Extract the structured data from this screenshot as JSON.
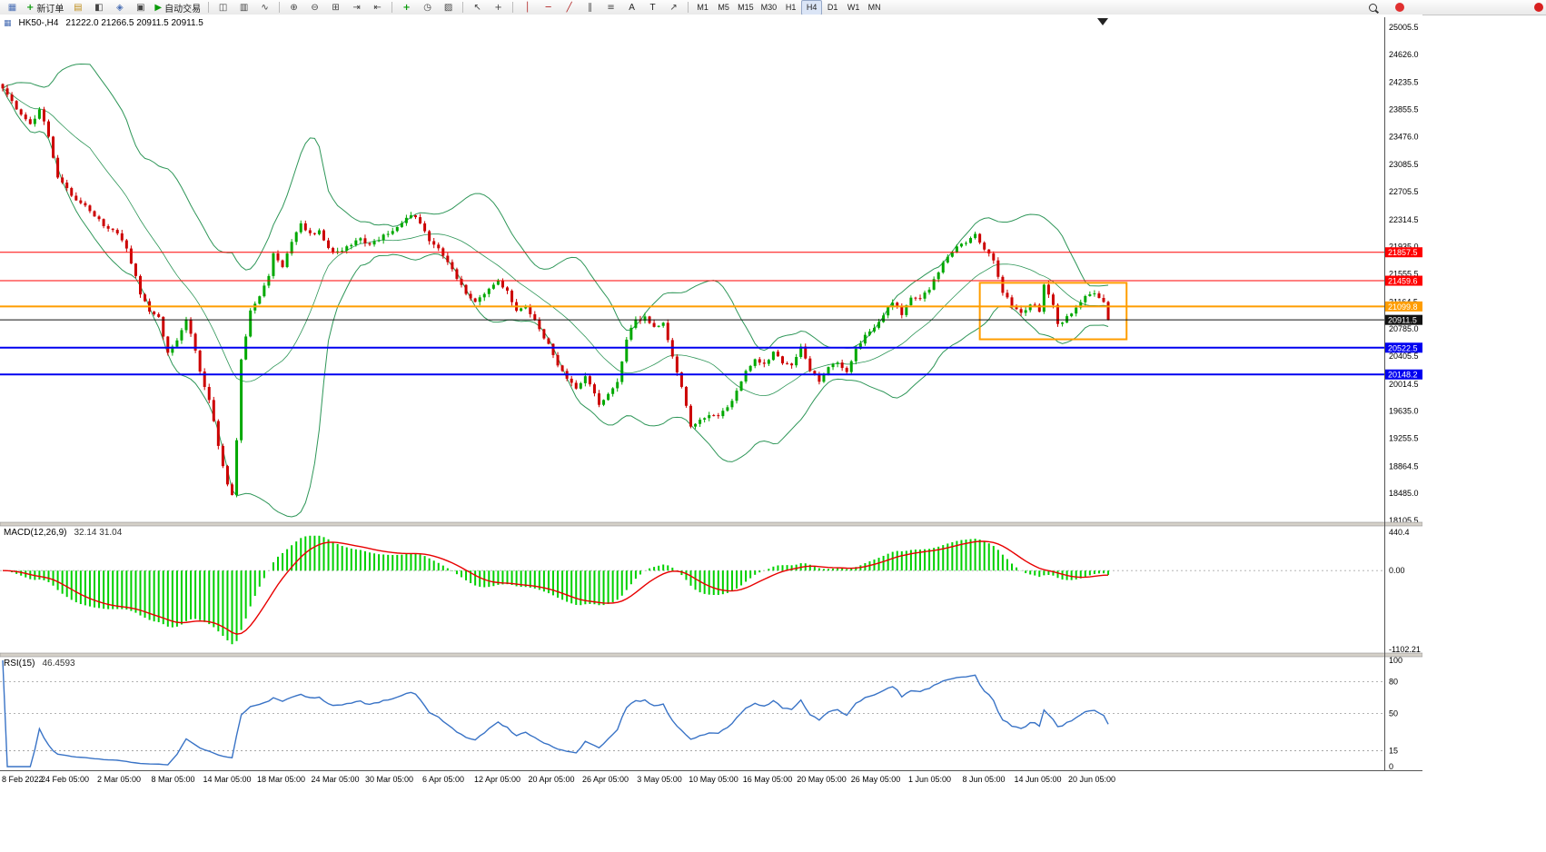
{
  "window": {
    "symbol_title": "HK50-,H4",
    "ohlc": "21222.0 21266.5 20911.5 20911.5"
  },
  "toolbar": {
    "items": [
      {
        "t": "icon",
        "name": "chart-window"
      },
      {
        "t": "btn",
        "name": "new-order-button",
        "icon": "new-order",
        "label": "新订单"
      },
      {
        "t": "icon",
        "name": "market-watch"
      },
      {
        "t": "icon",
        "name": "data-window"
      },
      {
        "t": "icon",
        "name": "navigator"
      },
      {
        "t": "icon",
        "name": "terminal"
      },
      {
        "t": "btn",
        "name": "auto-trading-button",
        "icon": "play",
        "label": "自动交易"
      },
      {
        "t": "sep"
      },
      {
        "t": "icon",
        "name": "bar-chart"
      },
      {
        "t": "icon",
        "name": "candlestick-chart"
      },
      {
        "t": "icon",
        "name": "line-chart"
      },
      {
        "t": "sep"
      },
      {
        "t": "icon",
        "name": "zoom-in"
      },
      {
        "t": "icon",
        "name": "zoom-out"
      },
      {
        "t": "icon",
        "name": "tile-windows"
      },
      {
        "t": "icon",
        "name": "auto-scroll"
      },
      {
        "t": "icon",
        "name": "chart-shift"
      },
      {
        "t": "sep"
      },
      {
        "t": "icon",
        "name": "indicators"
      },
      {
        "t": "icon",
        "name": "periods"
      },
      {
        "t": "icon",
        "name": "templates"
      },
      {
        "t": "sep"
      },
      {
        "t": "icon",
        "name": "cursor"
      },
      {
        "t": "icon",
        "name": "crosshair"
      },
      {
        "t": "sep"
      },
      {
        "t": "icon",
        "name": "vertical-line"
      },
      {
        "t": "icon",
        "name": "horizontal-line"
      },
      {
        "t": "icon",
        "name": "trendline"
      },
      {
        "t": "icon",
        "name": "equidistant-channel"
      },
      {
        "t": "icon",
        "name": "fibonacci"
      },
      {
        "t": "btn",
        "name": "text-tool-button",
        "label": "A"
      },
      {
        "t": "btn",
        "name": "label-tool-button",
        "label": "T"
      },
      {
        "t": "icon",
        "name": "arrows"
      },
      {
        "t": "sep"
      },
      {
        "t": "tf",
        "label": "M1"
      },
      {
        "t": "tf",
        "label": "M5"
      },
      {
        "t": "tf",
        "label": "M15"
      },
      {
        "t": "tf",
        "label": "M30"
      },
      {
        "t": "tf",
        "label": "H1"
      },
      {
        "t": "tf",
        "label": "H4",
        "active": true
      },
      {
        "t": "tf",
        "label": "D1"
      },
      {
        "t": "tf",
        "label": "W1"
      },
      {
        "t": "tf",
        "label": "MN"
      }
    ],
    "right_items": [
      {
        "t": "icon",
        "name": "search"
      },
      {
        "t": "icon",
        "name": "notifications"
      }
    ]
  },
  "colors": {
    "candle_up": "#00a800",
    "candle_down": "#cc0000",
    "bollinger": "#2e9658",
    "macd_histogram": "#00d000",
    "macd_signal": "#e80000",
    "rsi": "#3973c6",
    "hline_red": "#ff0000",
    "hline_orange": "#ff9d00",
    "hline_blue": "#0000f0",
    "current_price": "#111111"
  },
  "chart_data": {
    "type": "candlestick",
    "symbol": "HK50-",
    "timeframe": "H4",
    "main": {
      "price_max": 25005.5,
      "price_min": 18105.5,
      "bars_total": 242,
      "axis_labels": [
        "25005.5",
        "24626.0",
        "24235.5",
        "23855.5",
        "23476.0",
        "23085.5",
        "22705.5",
        "22314.5",
        "21935.0",
        "21555.5",
        "21164.5",
        "20785.0",
        "20405.5",
        "20014.5",
        "19635.0",
        "19255.5",
        "18864.5",
        "18485.0",
        "18105.5"
      ],
      "bollinger": {
        "period": 20,
        "deviation": 2
      },
      "hlines": [
        {
          "price": 21857.5,
          "label": "21857.5",
          "color": "#ff0000",
          "width": 1
        },
        {
          "price": 21459.6,
          "label": "21459.6",
          "color": "#ff0000",
          "width": 1
        },
        {
          "price": 21099.8,
          "label": "21099.8",
          "color": "#ff9d00",
          "width": 2
        },
        {
          "price": 20911.5,
          "label": "20911.5",
          "color": "#111111",
          "width": 1
        },
        {
          "price": 20522.5,
          "label": "20522.5",
          "color": "#0000f0",
          "width": 2
        },
        {
          "price": 20148.2,
          "label": "20148.2",
          "color": "#0000f0",
          "width": 2
        }
      ],
      "rectangle": {
        "bar_start": 213,
        "bar_end": 245,
        "price_top": 21430,
        "price_bottom": 20640,
        "color": "#ff9d00"
      },
      "close_keypoints": [
        [
          0,
          24150
        ],
        [
          2,
          23950
        ],
        [
          4,
          23800
        ],
        [
          6,
          23650
        ],
        [
          8,
          23850
        ],
        [
          10,
          23500
        ],
        [
          12,
          22900
        ],
        [
          14,
          22750
        ],
        [
          16,
          22600
        ],
        [
          18,
          22500
        ],
        [
          20,
          22350
        ],
        [
          22,
          22250
        ],
        [
          24,
          22150
        ],
        [
          26,
          22050
        ],
        [
          27,
          21900
        ],
        [
          29,
          21500
        ],
        [
          30,
          21250
        ],
        [
          32,
          21050
        ],
        [
          34,
          20950
        ],
        [
          36,
          20450
        ],
        [
          38,
          20650
        ],
        [
          40,
          20900
        ],
        [
          42,
          20500
        ],
        [
          43,
          20200
        ],
        [
          45,
          19800
        ],
        [
          47,
          19150
        ],
        [
          49,
          18600
        ],
        [
          50,
          18450
        ],
        [
          51,
          19250
        ],
        [
          52,
          20350
        ],
        [
          54,
          21050
        ],
        [
          56,
          21250
        ],
        [
          58,
          21550
        ],
        [
          59,
          21850
        ],
        [
          61,
          21650
        ],
        [
          63,
          22000
        ],
        [
          65,
          22250
        ],
        [
          67,
          22100
        ],
        [
          69,
          22150
        ],
        [
          71,
          21900
        ],
        [
          73,
          21850
        ],
        [
          75,
          21950
        ],
        [
          78,
          22050
        ],
        [
          80,
          21950
        ],
        [
          83,
          22100
        ],
        [
          86,
          22200
        ],
        [
          89,
          22400
        ],
        [
          91,
          22250
        ],
        [
          93,
          22000
        ],
        [
          95,
          21900
        ],
        [
          97,
          21700
        ],
        [
          99,
          21500
        ],
        [
          101,
          21300
        ],
        [
          103,
          21150
        ],
        [
          105,
          21300
        ],
        [
          108,
          21450
        ],
        [
          110,
          21300
        ],
        [
          112,
          21050
        ],
        [
          114,
          21100
        ],
        [
          116,
          20900
        ],
        [
          119,
          20550
        ],
        [
          121,
          20250
        ],
        [
          123,
          20100
        ],
        [
          125,
          19950
        ],
        [
          127,
          20150
        ],
        [
          129,
          19900
        ],
        [
          130,
          19750
        ],
        [
          132,
          19850
        ],
        [
          134,
          20050
        ],
        [
          136,
          20650
        ],
        [
          138,
          20900
        ],
        [
          140,
          20950
        ],
        [
          142,
          20800
        ],
        [
          144,
          20850
        ],
        [
          146,
          20400
        ],
        [
          148,
          20000
        ],
        [
          150,
          19400
        ],
        [
          152,
          19500
        ],
        [
          154,
          19600
        ],
        [
          156,
          19550
        ],
        [
          158,
          19700
        ],
        [
          160,
          19900
        ],
        [
          162,
          20200
        ],
        [
          164,
          20350
        ],
        [
          166,
          20300
        ],
        [
          168,
          20450
        ],
        [
          170,
          20300
        ],
        [
          172,
          20250
        ],
        [
          174,
          20550
        ],
        [
          176,
          20200
        ],
        [
          178,
          20050
        ],
        [
          180,
          20250
        ],
        [
          182,
          20300
        ],
        [
          184,
          20200
        ],
        [
          186,
          20500
        ],
        [
          188,
          20700
        ],
        [
          190,
          20800
        ],
        [
          192,
          21000
        ],
        [
          194,
          21150
        ],
        [
          196,
          21000
        ],
        [
          198,
          21250
        ],
        [
          200,
          21200
        ],
        [
          202,
          21350
        ],
        [
          204,
          21600
        ],
        [
          206,
          21800
        ],
        [
          208,
          21950
        ],
        [
          210,
          22000
        ],
        [
          212,
          22100
        ],
        [
          214,
          21900
        ],
        [
          216,
          21750
        ],
        [
          218,
          21300
        ],
        [
          220,
          21100
        ],
        [
          222,
          21000
        ],
        [
          224,
          21150
        ],
        [
          226,
          21050
        ],
        [
          227,
          21400
        ],
        [
          229,
          21100
        ],
        [
          230,
          20850
        ],
        [
          232,
          20950
        ],
        [
          234,
          21100
        ],
        [
          236,
          21250
        ],
        [
          238,
          21300
        ],
        [
          240,
          21150
        ],
        [
          241,
          20911.5
        ]
      ]
    },
    "macd": {
      "label": "MACD(12,26,9)",
      "values": "32.14 31.04",
      "fast": 12,
      "slow": 26,
      "signal": 9,
      "axis_labels": [
        "440.4",
        "0.00",
        "-1102.21"
      ]
    },
    "rsi": {
      "label": "RSI(15)",
      "value": "46.4593",
      "period": 15,
      "levels": [
        80,
        50,
        15
      ],
      "axis_labels": [
        "100",
        "80",
        "50",
        "15",
        "0"
      ]
    },
    "time_axis": [
      "8 Feb 2022",
      "24 Feb 05:00",
      "2 Mar 05:00",
      "8 Mar 05:00",
      "14 Mar 05:00",
      "18 Mar 05:00",
      "24 Mar 05:00",
      "30 Mar 05:00",
      "6 Apr 05:00",
      "12 Apr 05:00",
      "20 Apr 05:00",
      "26 Apr 05:00",
      "3 May 05:00",
      "10 May 05:00",
      "16 May 05:00",
      "20 May 05:00",
      "26 May 05:00",
      "1 Jun 05:00",
      "8 Jun 05:00",
      "14 Jun 05:00",
      "20 Jun 05:00"
    ]
  }
}
